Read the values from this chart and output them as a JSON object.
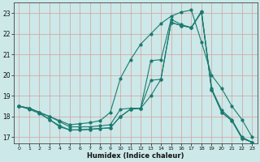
{
  "xlabel": "Humidex (Indice chaleur)",
  "bg_color": "#cce8e8",
  "grid_color": "#d4a0a0",
  "line_color": "#1a7a6e",
  "xlim": [
    -0.5,
    23.5
  ],
  "ylim": [
    16.7,
    23.5
  ],
  "yticks": [
    17,
    18,
    19,
    20,
    21,
    22,
    23
  ],
  "xticks": [
    0,
    1,
    2,
    3,
    4,
    5,
    6,
    7,
    8,
    9,
    10,
    11,
    12,
    13,
    14,
    15,
    16,
    17,
    18,
    19,
    20,
    21,
    22,
    23
  ],
  "line1_x": [
    0,
    1,
    2,
    3,
    4,
    5,
    6,
    7,
    8,
    9,
    10,
    11,
    12,
    13,
    14,
    15,
    16,
    17,
    18,
    19,
    20,
    21,
    22,
    23
  ],
  "line1_y": [
    18.5,
    18.4,
    18.2,
    18.0,
    17.75,
    17.5,
    17.5,
    17.5,
    17.55,
    17.6,
    18.35,
    18.4,
    18.4,
    20.7,
    20.75,
    22.7,
    22.45,
    22.3,
    23.1,
    19.35,
    18.3,
    17.85,
    17.0,
    16.75
  ],
  "line2_x": [
    0,
    1,
    2,
    3,
    4,
    5,
    6,
    7,
    8,
    9,
    10,
    11,
    12,
    13,
    14,
    15,
    16,
    17,
    18,
    19,
    20,
    21,
    22,
    23
  ],
  "line2_y": [
    18.5,
    18.4,
    18.2,
    17.85,
    17.55,
    17.35,
    17.35,
    17.38,
    17.42,
    17.45,
    18.0,
    18.35,
    18.4,
    19.75,
    19.8,
    22.55,
    22.4,
    22.3,
    23.05,
    19.3,
    18.2,
    17.8,
    16.95,
    16.75
  ],
  "line3_x": [
    0,
    1,
    2,
    3,
    4,
    5,
    6,
    7,
    8,
    9,
    10,
    11,
    12,
    13,
    14,
    15,
    16,
    17,
    18,
    19,
    20,
    21,
    22,
    23
  ],
  "line3_y": [
    18.5,
    18.35,
    18.15,
    17.85,
    17.5,
    17.35,
    17.35,
    17.38,
    17.42,
    17.45,
    18.0,
    18.35,
    18.4,
    19.0,
    19.8,
    22.55,
    22.4,
    22.3,
    23.05,
    19.3,
    18.2,
    17.8,
    16.95,
    16.75
  ],
  "line4_x": [
    0,
    1,
    2,
    3,
    4,
    5,
    6,
    7,
    8,
    9,
    10,
    11,
    12,
    13,
    14,
    15,
    16,
    17,
    18,
    19,
    20,
    21,
    22,
    23
  ],
  "line4_y": [
    18.5,
    18.4,
    18.2,
    18.0,
    17.8,
    17.6,
    17.65,
    17.7,
    17.8,
    18.2,
    19.85,
    20.75,
    21.5,
    22.0,
    22.5,
    22.85,
    23.05,
    23.15,
    21.6,
    20.0,
    19.35,
    18.5,
    17.85,
    17.0
  ]
}
